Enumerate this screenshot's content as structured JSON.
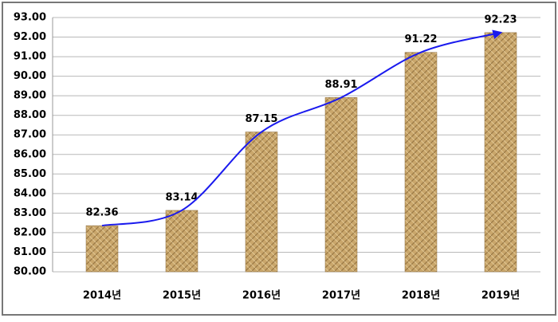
{
  "chart_data": {
    "type": "bar",
    "categories": [
      "2014년",
      "2015년",
      "2016년",
      "2017년",
      "2018년",
      "2019년"
    ],
    "values": [
      82.36,
      83.14,
      87.15,
      88.91,
      91.22,
      92.23
    ],
    "color": "#c9a66b",
    "line_color": "#1a1aee",
    "trend_line": true,
    "ylim": [
      80,
      93
    ],
    "yticks": [
      {
        "value": 80,
        "label": "80.00"
      },
      {
        "value": 81,
        "label": "81.00"
      },
      {
        "value": 82,
        "label": "82.00"
      },
      {
        "value": 83,
        "label": "83.00"
      },
      {
        "value": 84,
        "label": "84.00"
      },
      {
        "value": 85,
        "label": "85.00"
      },
      {
        "value": 86,
        "label": "86.00"
      },
      {
        "value": 87,
        "label": "87.00"
      },
      {
        "value": 88,
        "label": "88.00"
      },
      {
        "value": 89,
        "label": "89.00"
      },
      {
        "value": 90,
        "label": "90.00"
      },
      {
        "value": 91,
        "label": "91.00"
      },
      {
        "value": 92,
        "label": "92.00"
      },
      {
        "value": 93,
        "label": "93.00"
      }
    ],
    "grid": true
  }
}
